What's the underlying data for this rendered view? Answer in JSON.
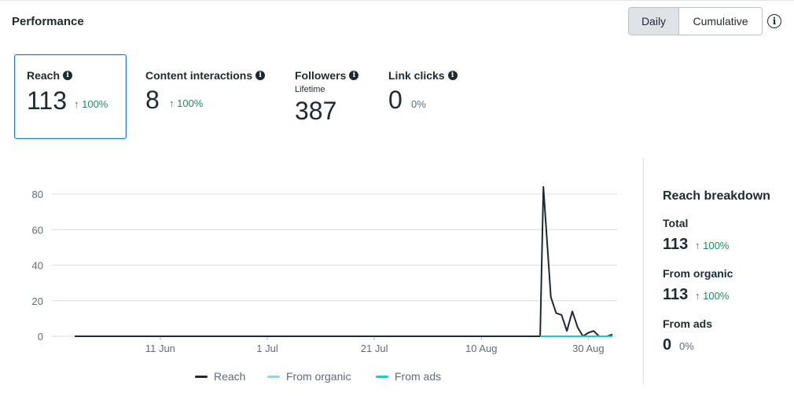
{
  "header": {
    "title": "Performance",
    "toggle": {
      "daily": "Daily",
      "cumulative": "Cumulative"
    },
    "info_icon": "info-icon"
  },
  "metrics": [
    {
      "label": "Reach",
      "value": "113",
      "change": "↑ 100%",
      "sublabel": ""
    },
    {
      "label": "Content interactions",
      "value": "8",
      "change": "↑ 100%",
      "sublabel": ""
    },
    {
      "label": "Followers",
      "value": "387",
      "change": "",
      "sublabel": "Lifetime"
    },
    {
      "label": "Link clicks",
      "value": "0",
      "change": "0%",
      "sublabel": ""
    }
  ],
  "breakdown": {
    "title": "Reach breakdown",
    "rows": [
      {
        "label": "Total",
        "value": "113",
        "change": "↑ 100%"
      },
      {
        "label": "From organic",
        "value": "113",
        "change": "↑ 100%"
      },
      {
        "label": "From ads",
        "value": "0",
        "change": "0%"
      }
    ]
  },
  "colors": {
    "reach": "#1c2b33",
    "organic": "#8fd3ee",
    "ads": "#2bc2c2",
    "positive": "#1d8a5e",
    "accent": "#1f7ad6"
  },
  "chart_data": {
    "type": "line",
    "title": "",
    "xlabel": "",
    "ylabel": "",
    "ylim": [
      0,
      90
    ],
    "y_ticks": [
      0,
      20,
      40,
      60,
      80
    ],
    "x_ticks": [
      "11 Jun",
      "1 Jul",
      "21 Jul",
      "10 Aug",
      "30 Aug"
    ],
    "x_tick_days": [
      11,
      31,
      51,
      71,
      91
    ],
    "x_range_days": [
      -5,
      93
    ],
    "series": [
      {
        "name": "Reach",
        "points": [
          [
            -5,
            0
          ],
          [
            81,
            0
          ],
          [
            82,
            0
          ],
          [
            82.6,
            84
          ],
          [
            84,
            22
          ],
          [
            85,
            13
          ],
          [
            86,
            12
          ],
          [
            87,
            3
          ],
          [
            88,
            14
          ],
          [
            89,
            5
          ],
          [
            90,
            0
          ],
          [
            91,
            2
          ],
          [
            92,
            3
          ],
          [
            93,
            0
          ],
          [
            94.5,
            0
          ],
          [
            95.5,
            1
          ]
        ]
      },
      {
        "name": "From organic",
        "points": [
          [
            82,
            0
          ],
          [
            95.5,
            0
          ]
        ]
      },
      {
        "name": "From ads",
        "points": [
          [
            82,
            0
          ],
          [
            95.5,
            0
          ]
        ]
      }
    ],
    "legend": [
      "Reach",
      "From organic",
      "From ads"
    ]
  }
}
